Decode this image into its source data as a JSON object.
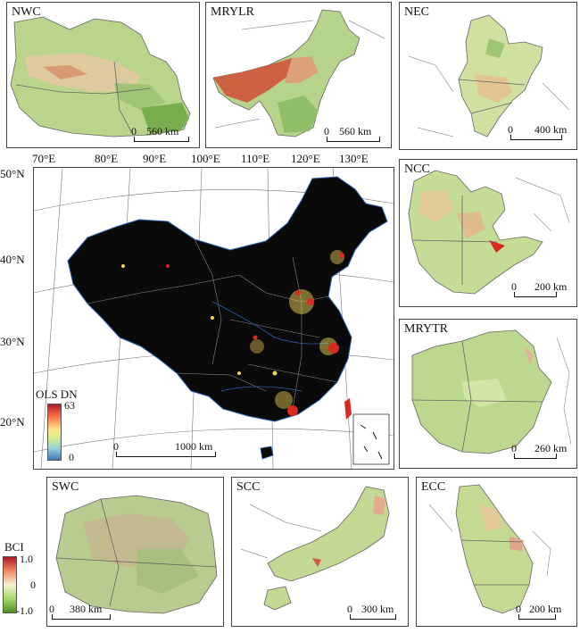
{
  "panels": {
    "nwc": {
      "label": "NWC",
      "scale_zero": "0",
      "scale_dist": "560 km"
    },
    "mrylr": {
      "label": "MRYLR",
      "scale_zero": "0",
      "scale_dist": "560 km"
    },
    "nec": {
      "label": "NEC",
      "scale_zero": "0",
      "scale_dist": "400 km"
    },
    "ncc": {
      "label": "NCC",
      "scale_zero": "0",
      "scale_dist": "200 km"
    },
    "myltr": {
      "label": "MRYTR",
      "scale_zero": "0",
      "scale_dist": "260 km"
    },
    "swc": {
      "label": "SWC",
      "scale_zero": "0",
      "scale_dist": "380 km"
    },
    "scc": {
      "label": "SCC",
      "scale_zero": "0",
      "scale_dist": "300 km"
    },
    "ecc": {
      "label": "ECC",
      "scale_zero": "0",
      "scale_dist": "200 km"
    }
  },
  "main_map": {
    "lon_ticks": [
      "70°E",
      "80°E",
      "90°E",
      "100°E",
      "110°E",
      "120°E",
      "130°E"
    ],
    "lat_ticks": [
      "50°N",
      "40°N",
      "30°N",
      "20°N"
    ],
    "scale_zero": "0",
    "scale_dist": "1000 km",
    "legend": {
      "title": "OLS DN",
      "max": "63",
      "min": "0"
    }
  },
  "bci_legend": {
    "title": "BCI",
    "max": "1.0",
    "mid": "0",
    "min": "-1.0"
  },
  "colors": {
    "night_background": "#0a0a0a",
    "province_border": "#2f5fb0",
    "light_red": "#d62b1e",
    "light_yellow": "#f0d35a",
    "bci_high": "#b2182b",
    "bci_mid": "#f5f2d0",
    "bci_low": "#4d9221"
  }
}
